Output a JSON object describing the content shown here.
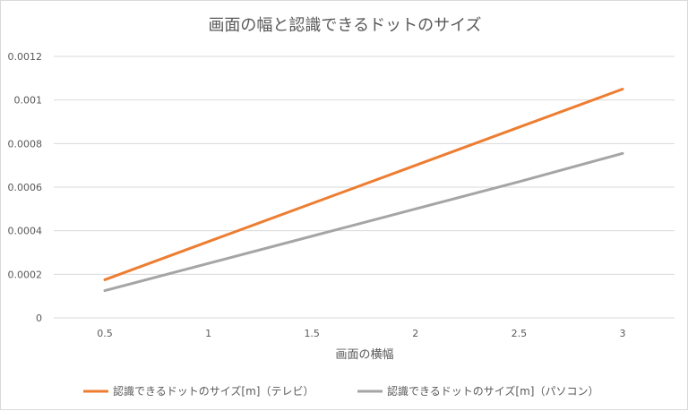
{
  "chart_data": {
    "type": "line",
    "title": "画面の幅と認識できるドットのサイズ",
    "xlabel": "画面の横幅",
    "ylabel": "",
    "x": [
      0.5,
      1,
      1.5,
      2,
      2.5,
      3
    ],
    "x_tick_labels": [
      "0.5",
      "1",
      "1.5",
      "2",
      "2.5",
      "3"
    ],
    "y_tick_labels": [
      "0",
      "0.0002",
      "0.0004",
      "0.0006",
      "0.0008",
      "0.001",
      "0.0012"
    ],
    "ylim": [
      0,
      0.0012
    ],
    "grid": true,
    "legend_position": "bottom",
    "series": [
      {
        "name": "認識できるドットのサイズ[m]（テレビ）",
        "color": "#ED7D31",
        "values": [
          0.000175,
          0.00035,
          0.000525,
          0.0007,
          0.000875,
          0.00105
        ]
      },
      {
        "name": "認識できるドットのサイズ[m]（パソコン）",
        "color": "#A5A5A5",
        "values": [
          0.000125,
          0.00025,
          0.000375,
          0.0005,
          0.000625,
          0.000755
        ]
      }
    ]
  }
}
